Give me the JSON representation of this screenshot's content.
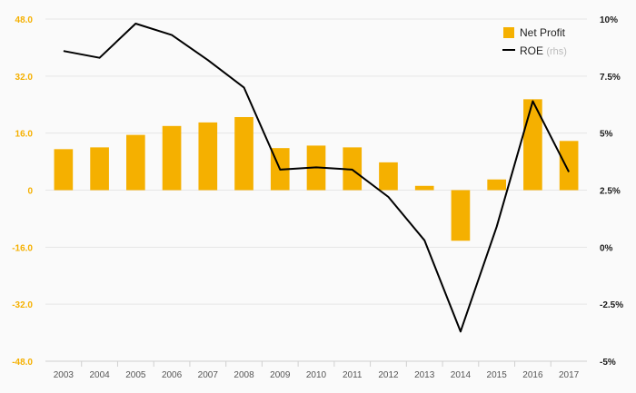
{
  "chart_data": {
    "type": "bar",
    "categories": [
      "2003",
      "2004",
      "2005",
      "2006",
      "2007",
      "2008",
      "2009",
      "2010",
      "2011",
      "2012",
      "2013",
      "2014",
      "2015",
      "2016",
      "2017"
    ],
    "series": [
      {
        "name": "Net Profit",
        "type": "bar",
        "axis": "left",
        "color": "#f5b000",
        "values": [
          11.5,
          12.0,
          15.5,
          18.0,
          19.0,
          20.5,
          11.8,
          12.5,
          12.0,
          7.8,
          1.2,
          -14.2,
          3.0,
          25.5,
          13.8
        ]
      },
      {
        "name": "ROE",
        "name_note": "(rhs)",
        "type": "line",
        "axis": "right",
        "color": "#000000",
        "values": [
          8.6,
          8.3,
          9.8,
          9.3,
          8.2,
          7.0,
          3.4,
          3.5,
          3.4,
          2.2,
          0.3,
          -3.7,
          0.9,
          6.4,
          3.3
        ]
      }
    ],
    "y_left": {
      "ticks": [
        "48.0",
        "32.0",
        "16.0",
        "0",
        "-16.0",
        "-32.0",
        "-48.0"
      ],
      "ylim": [
        -48,
        48
      ],
      "color": "#f5b000"
    },
    "y_right": {
      "ticks": [
        "10%",
        "7.5%",
        "5%",
        "2.5%",
        "0%",
        "-2.5%",
        "-5%"
      ],
      "ylim": [
        -5,
        10
      ]
    },
    "grid": true,
    "legend": "top-right"
  }
}
